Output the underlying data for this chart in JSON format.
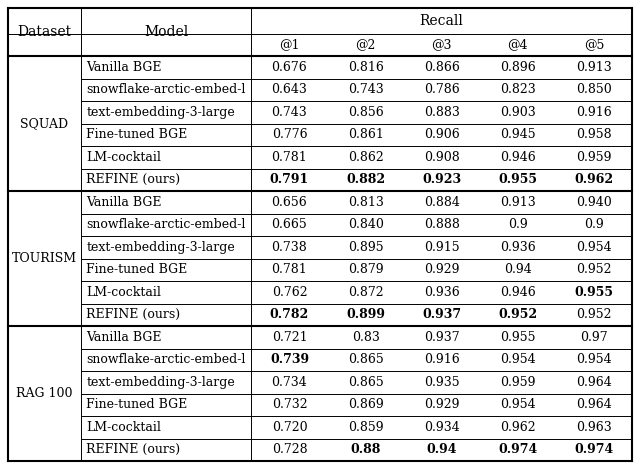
{
  "col_headers": [
    "@1",
    "@2",
    "@3",
    "@4",
    "@5"
  ],
  "datasets": [
    "SQUAD",
    "TOURISM",
    "RAG 100"
  ],
  "models": [
    "Vanilla BGE",
    "snowflake-arctic-embed-l",
    "text-embedding-3-large",
    "Fine-tuned BGE",
    "LM-cocktail",
    "REFINE (ours)"
  ],
  "cell_display": {
    "SQUAD": [
      [
        "0.676",
        "0.816",
        "0.866",
        "0.896",
        "0.913"
      ],
      [
        "0.643",
        "0.743",
        "0.786",
        "0.823",
        "0.850"
      ],
      [
        "0.743",
        "0.856",
        "0.883",
        "0.903",
        "0.916"
      ],
      [
        "0.776",
        "0.861",
        "0.906",
        "0.945",
        "0.958"
      ],
      [
        "0.781",
        "0.862",
        "0.908",
        "0.946",
        "0.959"
      ],
      [
        "0.791",
        "0.882",
        "0.923",
        "0.955",
        "0.962"
      ]
    ],
    "TOURISM": [
      [
        "0.656",
        "0.813",
        "0.884",
        "0.913",
        "0.940"
      ],
      [
        "0.665",
        "0.840",
        "0.888",
        "0.9",
        "0.9"
      ],
      [
        "0.738",
        "0.895",
        "0.915",
        "0.936",
        "0.954"
      ],
      [
        "0.781",
        "0.879",
        "0.929",
        "0.94",
        "0.952"
      ],
      [
        "0.762",
        "0.872",
        "0.936",
        "0.946",
        "0.955"
      ],
      [
        "0.782",
        "0.899",
        "0.937",
        "0.952",
        "0.952"
      ]
    ],
    "RAG 100": [
      [
        "0.721",
        "0.83",
        "0.937",
        "0.955",
        "0.97"
      ],
      [
        "0.739",
        "0.865",
        "0.916",
        "0.954",
        "0.954"
      ],
      [
        "0.734",
        "0.865",
        "0.935",
        "0.959",
        "0.964"
      ],
      [
        "0.732",
        "0.869",
        "0.929",
        "0.954",
        "0.964"
      ],
      [
        "0.720",
        "0.859",
        "0.934",
        "0.962",
        "0.963"
      ],
      [
        "0.728",
        "0.88",
        "0.94",
        "0.974",
        "0.974"
      ]
    ]
  },
  "bold": {
    "SQUAD": [
      [
        false,
        false,
        false,
        false,
        false
      ],
      [
        false,
        false,
        false,
        false,
        false
      ],
      [
        false,
        false,
        false,
        false,
        false
      ],
      [
        false,
        false,
        false,
        false,
        false
      ],
      [
        false,
        false,
        false,
        false,
        false
      ],
      [
        true,
        true,
        true,
        true,
        true
      ]
    ],
    "TOURISM": [
      [
        false,
        false,
        false,
        false,
        false
      ],
      [
        false,
        false,
        false,
        false,
        false
      ],
      [
        false,
        false,
        false,
        false,
        false
      ],
      [
        false,
        false,
        false,
        false,
        false
      ],
      [
        false,
        false,
        false,
        false,
        true
      ],
      [
        true,
        true,
        true,
        true,
        false
      ]
    ],
    "RAG 100": [
      [
        false,
        false,
        false,
        false,
        false
      ],
      [
        true,
        false,
        false,
        false,
        false
      ],
      [
        false,
        false,
        false,
        false,
        false
      ],
      [
        false,
        false,
        false,
        false,
        false
      ],
      [
        false,
        false,
        false,
        false,
        false
      ],
      [
        false,
        true,
        true,
        true,
        true
      ]
    ]
  },
  "bg_color": "#ffffff",
  "text_color": "#000000",
  "font_size": 9.0,
  "header_font_size": 10.0
}
